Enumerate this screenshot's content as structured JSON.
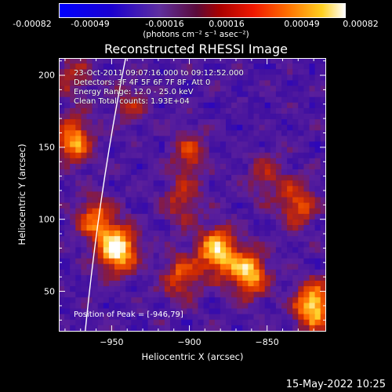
{
  "colorbar": {
    "ticks": [
      "-0.00082",
      "-0.00049",
      "-0.00016",
      "0.00016",
      "0.00049",
      "0.00082"
    ],
    "units": "(photons cm⁻² s⁻¹ asec⁻²)",
    "range": [
      -0.00082,
      0.00082
    ]
  },
  "annotations": {
    "time": "23-Oct-2011 09:07:16.000 to 09:12:52.000",
    "detectors": "Detectors: 3F 4F 5F 6F 7F 8F, Att 0",
    "energy": "Energy Range: 12.0 - 25.0 keV",
    "clean": "Clean     Total counts: 1.93E+04",
    "peak": "Position of Peak = [-946,79]"
  },
  "footer": "15-May-2022 10:25",
  "chart_data": {
    "type": "heatmap",
    "title": "Reconstructed RHESSI Image",
    "xlabel": "Heliocentric X (arcsec)",
    "ylabel": "Heliocentric Y (arcsec)",
    "xlim": [
      -984,
      -812
    ],
    "ylim": [
      22,
      212
    ],
    "xticks": [
      -950,
      -900,
      -850
    ],
    "yticks": [
      50,
      100,
      150,
      200
    ],
    "sources": [
      {
        "x": -946,
        "y": 79,
        "intensity": 1.0
      },
      {
        "x": -882,
        "y": 78,
        "intensity": 0.9
      },
      {
        "x": -862,
        "y": 62,
        "intensity": 0.85
      },
      {
        "x": -820,
        "y": 40,
        "intensity": 0.95
      },
      {
        "x": -975,
        "y": 155,
        "intensity": 0.75
      },
      {
        "x": -960,
        "y": 100,
        "intensity": 0.6
      },
      {
        "x": -900,
        "y": 145,
        "intensity": 0.45
      },
      {
        "x": -905,
        "y": 112,
        "intensity": 0.4
      },
      {
        "x": -850,
        "y": 130,
        "intensity": 0.35
      },
      {
        "x": -830,
        "y": 110,
        "intensity": 0.55
      },
      {
        "x": -975,
        "y": 200,
        "intensity": 0.35
      },
      {
        "x": -905,
        "y": 60,
        "intensity": 0.55
      },
      {
        "x": -938,
        "y": 180,
        "intensity": 0.3
      }
    ],
    "limb": "solar limb arc",
    "colormap": [
      "#0000ff",
      "#1f00cc",
      "#4010a0",
      "#5a1f9c",
      "#8a1a3a",
      "#d22b00",
      "#ff6a00",
      "#ffd02a",
      "#ffffff"
    ]
  }
}
